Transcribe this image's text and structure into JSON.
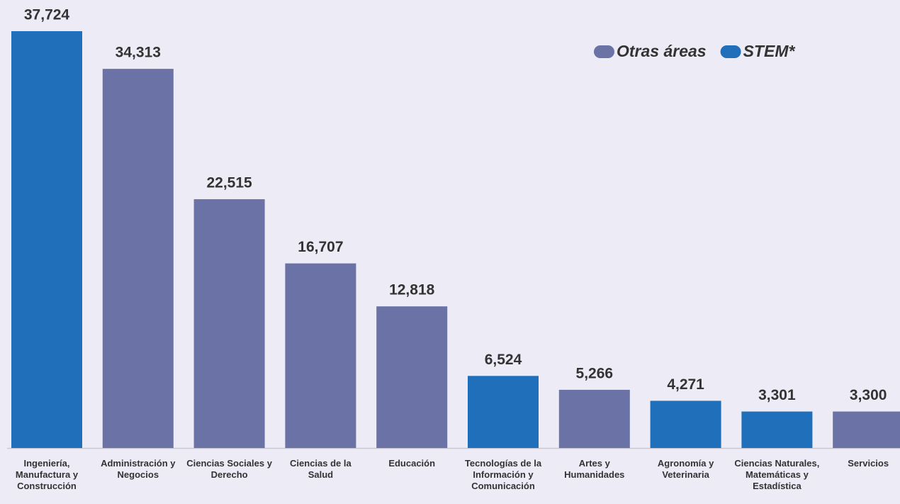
{
  "chart_data": {
    "type": "bar",
    "categories": [
      "Ingeniería, Manufactura y Construcción",
      "Administración y Negocios",
      "Ciencias Sociales y Derecho",
      "Ciencias de la Salud",
      "Educación",
      "Tecnologías de la Información y Comunicación",
      "Artes y Humanidades",
      "Agronomía y Veterinaria",
      "Ciencias Naturales, Matemáticas y Estadística",
      "Servicios"
    ],
    "values": [
      37724,
      34313,
      22515,
      16707,
      12818,
      6524,
      5266,
      4271,
      3301,
      3300
    ],
    "value_labels": [
      "37,724",
      "34,313",
      "22,515",
      "16,707",
      "12,818",
      "6,524",
      "5,266",
      "4,271",
      "3,301",
      "3,300"
    ],
    "colors": [
      "#1f6fba",
      "#6a72a6",
      "#6a72a6",
      "#6a72a6",
      "#6a72a6",
      "#1f6fba",
      "#6a72a6",
      "#1f6fba",
      "#1f6fba",
      "#6a72a6"
    ],
    "legend": [
      {
        "name": "Otras áreas",
        "color": "#6a72a6"
      },
      {
        "name": "STEM*",
        "color": "#1f6fba"
      }
    ],
    "ylim": [
      0,
      40000
    ]
  }
}
